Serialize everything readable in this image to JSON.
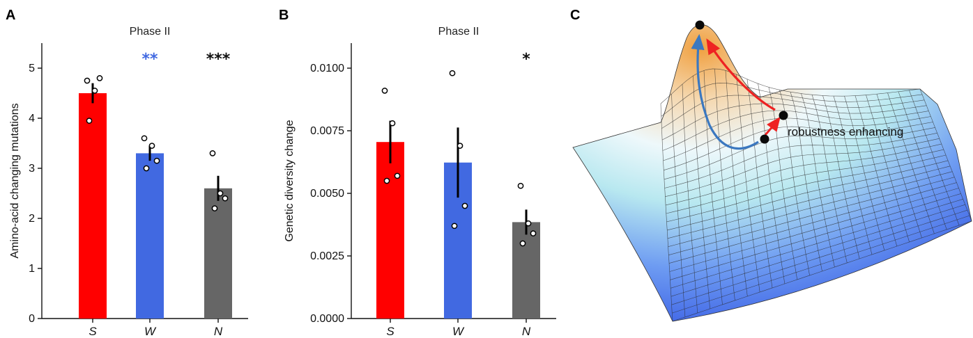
{
  "panels": {
    "a": {
      "label": "A"
    },
    "b": {
      "label": "B"
    },
    "c": {
      "label": "C"
    }
  },
  "colors": {
    "S": "#ff0000",
    "W": "#4169e1",
    "N": "#666666"
  },
  "chart_data": [
    {
      "type": "bar",
      "title": "Phase II",
      "ylabel": "Amino-acid changing mutations",
      "xlabel": "",
      "categories": [
        "S",
        "W",
        "N"
      ],
      "values": [
        4.5,
        3.3,
        2.6
      ],
      "errors": [
        0.2,
        0.15,
        0.25
      ],
      "points": [
        [
          4.75,
          4.55,
          4.8,
          3.95
        ],
        [
          3.6,
          3.45,
          3.15,
          3.0
        ],
        [
          3.3,
          2.5,
          2.4,
          2.2
        ]
      ],
      "significance": [
        "",
        "**",
        "***"
      ],
      "significance_colors": [
        "",
        "#4169e1",
        "#111111"
      ],
      "ylim": [
        0,
        5.5
      ],
      "yticks": [
        0,
        1,
        2,
        3,
        4,
        5
      ],
      "ytick_labels": [
        "0",
        "1",
        "2",
        "3",
        "4",
        "5"
      ],
      "grid": false
    },
    {
      "type": "bar",
      "title": "Phase II",
      "ylabel": "Genetic diversity change",
      "xlabel": "",
      "categories": [
        "S",
        "W",
        "N"
      ],
      "values": [
        0.00705,
        0.00623,
        0.00385
      ],
      "errors": [
        0.00085,
        0.0014,
        0.0005
      ],
      "points": [
        [
          0.0091,
          0.0078,
          0.0057,
          0.0055
        ],
        [
          0.0098,
          0.0069,
          0.0045,
          0.0037
        ],
        [
          0.0053,
          0.0038,
          0.0034,
          0.003
        ]
      ],
      "significance": [
        "",
        "",
        "*"
      ],
      "significance_colors": [
        "",
        "",
        "#111111"
      ],
      "ylim": [
        0,
        0.011
      ],
      "yticks": [
        0,
        0.0025,
        0.005,
        0.0075,
        0.01
      ],
      "ytick_labels": [
        "0.0000",
        "0.0025",
        "0.0050",
        "0.0075",
        "0.0100"
      ],
      "grid": false
    }
  ],
  "landscape": {
    "annotation": "robustness enhancing",
    "colors": {
      "surface_low": "#4a72f0",
      "surface_mid": "#e8f6fb",
      "surface_high": "#f2a44a",
      "path_red": "#ee2222",
      "path_blue": "#3b78c0"
    }
  }
}
